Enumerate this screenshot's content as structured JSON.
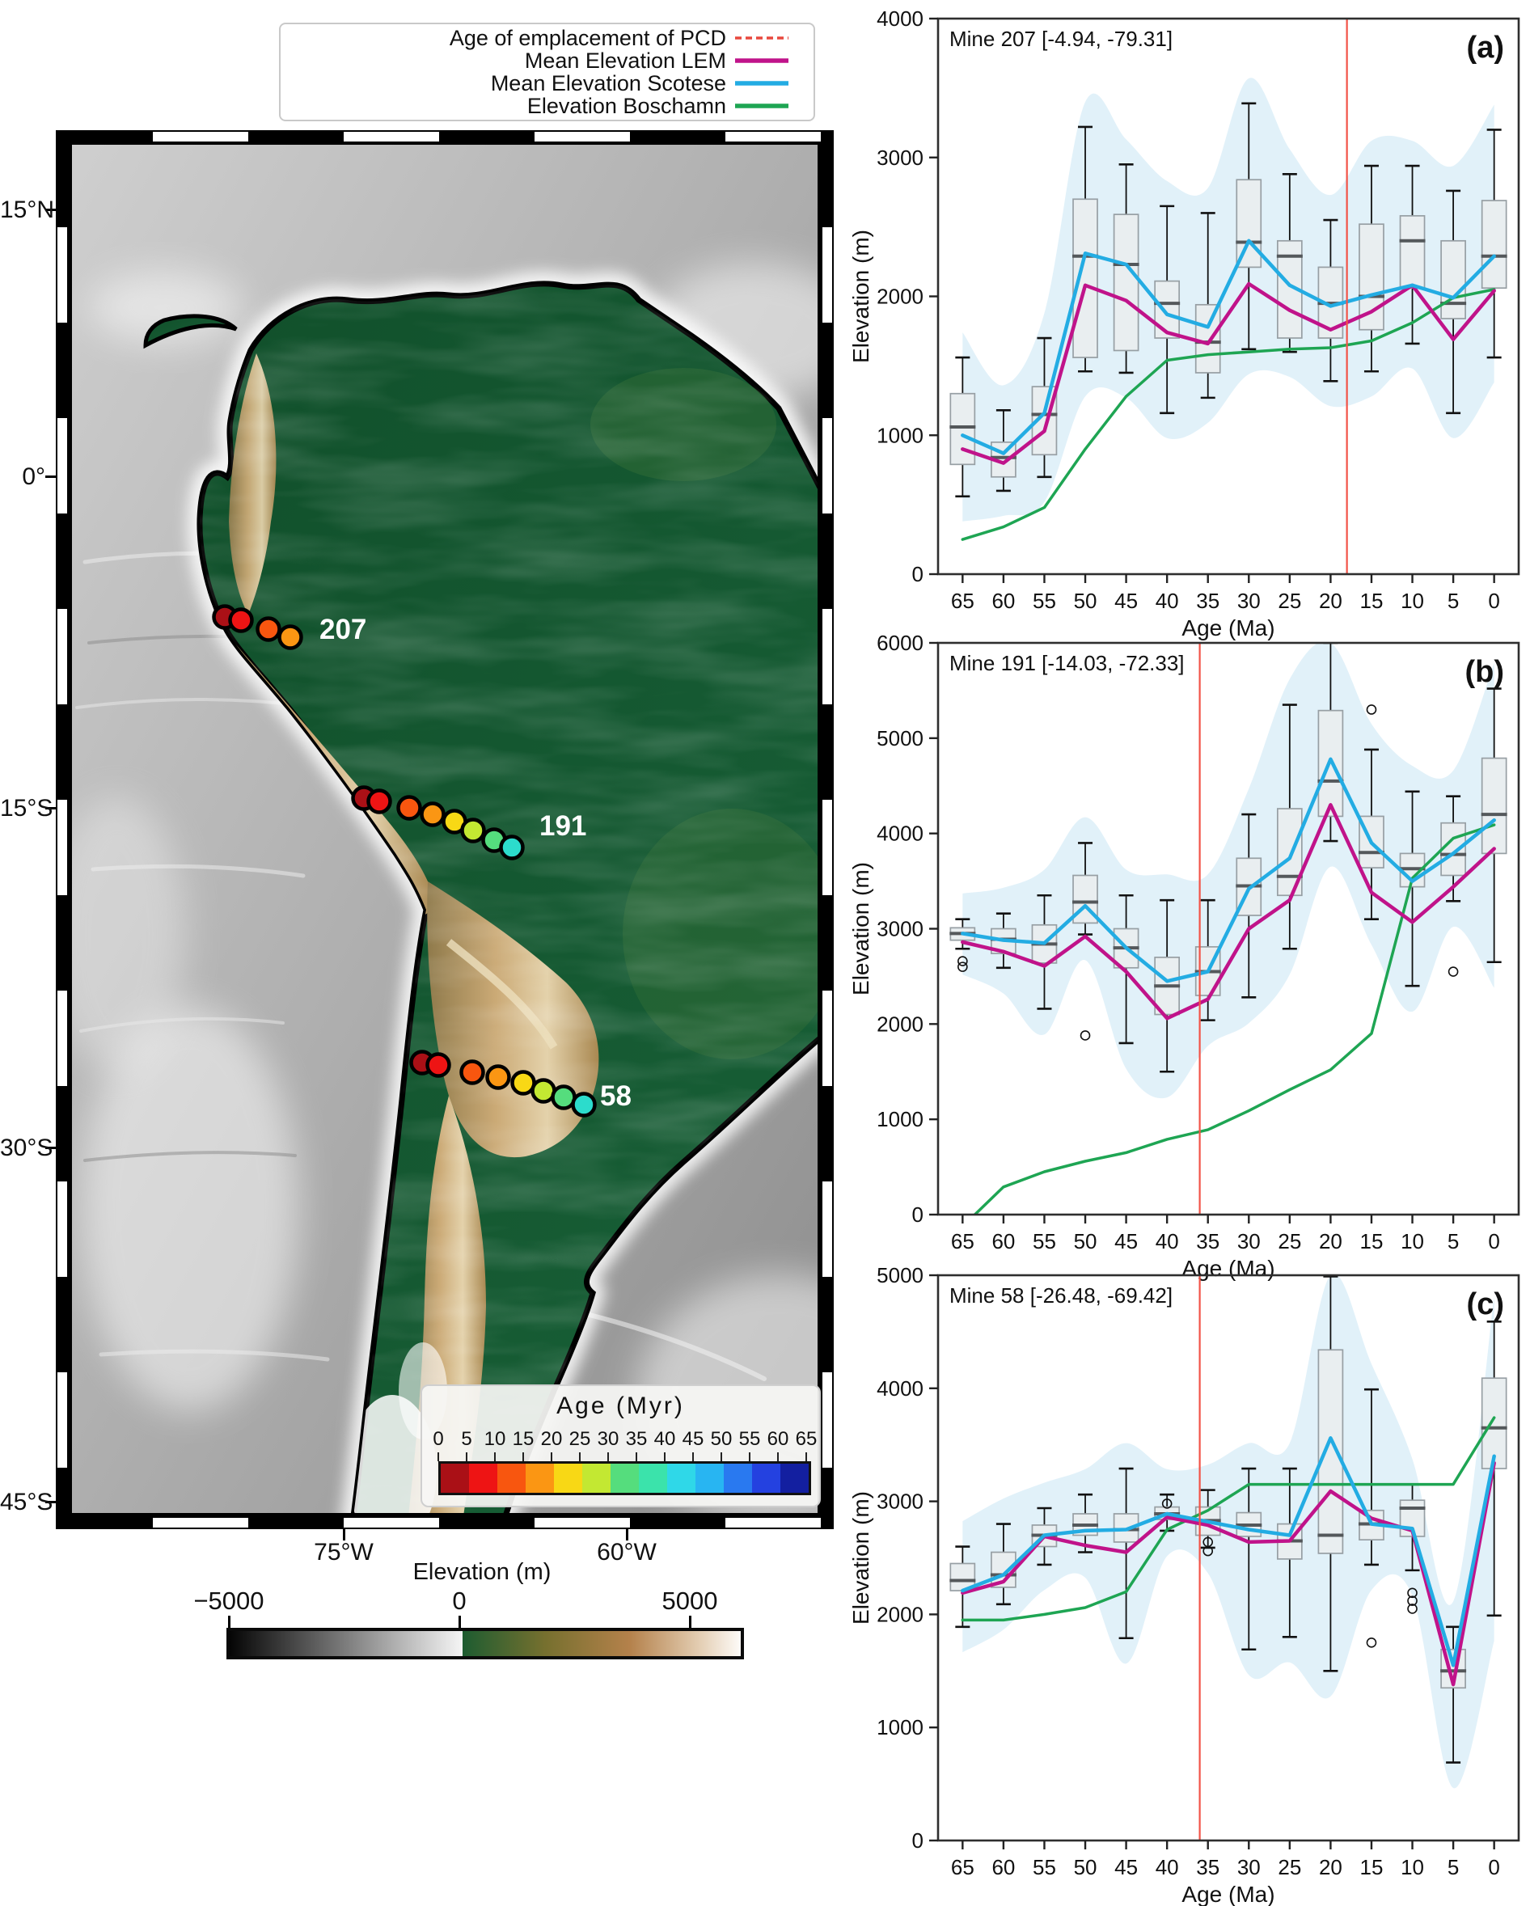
{
  "figure": {
    "panel_letters": [
      "(a)",
      "(b)",
      "(c)"
    ]
  },
  "colors": {
    "band": "#daedf8",
    "box_fill": "#e9eef0",
    "box_edge": "#979fa4",
    "median": "#54585b",
    "whisker": "#111111",
    "pcd_line": "#f25347",
    "lem": "#c0138a",
    "scotese": "#23ace3",
    "boschamn": "#1ea553",
    "frame": "#2e2e2e"
  },
  "legend": {
    "items": [
      {
        "label": "Age of emplacement of PCD",
        "color": "#e8483e",
        "style": "dashed"
      },
      {
        "label": "Mean Elevation LEM",
        "color": "#c0138a",
        "style": "solid"
      },
      {
        "label": "Mean Elevation Scotese",
        "color": "#23ace3",
        "style": "solid"
      },
      {
        "label": "Elevation Boschamn",
        "color": "#1ea553",
        "style": "solid"
      }
    ]
  },
  "map": {
    "lat_labels": [
      "15°N",
      "0°",
      "15°S",
      "30°S",
      "45°S"
    ],
    "lon_labels": [
      "75°W",
      "60°W"
    ],
    "mines": [
      {
        "id": "207",
        "dot_colors": [
          "#aa1016",
          "#ee1414",
          "#f8560f",
          "#fb9613"
        ]
      },
      {
        "id": "191",
        "dot_colors": [
          "#aa1016",
          "#ee1414",
          "#f8560f",
          "#fb9613",
          "#f8d815",
          "#c3e832",
          "#55dd7d",
          "#2cdccc"
        ]
      },
      {
        "id": "58",
        "dot_colors": [
          "#aa1016",
          "#ee1414",
          "#f8560f",
          "#fb9613",
          "#f8d815",
          "#c3e832",
          "#55dd7d",
          "#2cdccc"
        ]
      }
    ],
    "age_colorbar": {
      "title": "Age (Myr)",
      "ticks": [
        0,
        5,
        10,
        15,
        20,
        25,
        30,
        35,
        40,
        45,
        50,
        55,
        60,
        65
      ],
      "colors": [
        "#aa1016",
        "#ee1414",
        "#f8560f",
        "#fb9613",
        "#f8d815",
        "#c3e832",
        "#55dd7d",
        "#3be3ab",
        "#2fd8e8",
        "#28b5f2",
        "#2979f0",
        "#2441e0",
        "#131fa0"
      ]
    },
    "elevation_colorbar": {
      "label": "Elevation (m)",
      "ticks": [
        "−5000",
        "0",
        "5000"
      ],
      "sea_colors": [
        "#050505",
        "#f5f5f5"
      ],
      "land_colors": [
        "#1d5c30",
        "#77702f",
        "#b4814b",
        "#e3cdb2",
        "#fdfbf8"
      ]
    }
  },
  "chart_data": [
    {
      "type": "boxplot+lines",
      "panel_label": "(a)",
      "title": "Mine 207 [-4.94, -79.31]",
      "xlabel": "Age (Ma)",
      "ylabel": "Elevation (m)",
      "x": [
        65,
        60,
        55,
        50,
        45,
        40,
        35,
        30,
        25,
        20,
        15,
        10,
        5,
        0
      ],
      "ylim": [
        0,
        4000
      ],
      "yticks": [
        0,
        1000,
        2000,
        3000,
        4000
      ],
      "pcd_age": 18,
      "box": {
        "median": [
          1060,
          840,
          1150,
          2290,
          2230,
          1950,
          1670,
          2390,
          2290,
          1950,
          2000,
          2400,
          1950,
          2290
        ],
        "q1": [
          790,
          700,
          860,
          1560,
          1610,
          1700,
          1450,
          2210,
          1700,
          1700,
          1760,
          2060,
          1840,
          2060
        ],
        "q3": [
          1300,
          950,
          1350,
          2700,
          2590,
          2110,
          1940,
          2840,
          2400,
          2210,
          2520,
          2580,
          2400,
          2690
        ],
        "lo": [
          560,
          600,
          700,
          1460,
          1450,
          1160,
          1270,
          1620,
          1600,
          1390,
          1460,
          1660,
          1160,
          1560
        ],
        "hi": [
          1560,
          1180,
          1700,
          3220,
          2950,
          2650,
          2600,
          3390,
          2880,
          2550,
          2940,
          2940,
          2760,
          3200
        ]
      },
      "outliers": [],
      "series": [
        {
          "name": "Elevation Boschamn",
          "color": "#1ea553",
          "width": 3.5,
          "values": [
            250,
            340,
            480,
            900,
            1280,
            1540,
            1580,
            1600,
            1620,
            1630,
            1680,
            1810,
            1990,
            2050
          ]
        },
        {
          "name": "Mean Elevation LEM",
          "color": "#c0138a",
          "width": 4.5,
          "values": [
            900,
            800,
            1030,
            2080,
            1970,
            1740,
            1660,
            2090,
            1900,
            1760,
            1890,
            2080,
            1690,
            2040
          ]
        },
        {
          "name": "Mean Elevation Scotese",
          "color": "#23ace3",
          "width": 4.5,
          "values": [
            1000,
            870,
            1160,
            2310,
            2230,
            1870,
            1780,
            2400,
            2080,
            1930,
            2010,
            2080,
            1990,
            2290
          ]
        }
      ]
    },
    {
      "type": "boxplot+lines",
      "panel_label": "(b)",
      "title": "Mine 191 [-14.03, -72.33]",
      "xlabel": "Age (Ma)",
      "ylabel": "Elevation (m)",
      "x": [
        65,
        60,
        55,
        50,
        45,
        40,
        35,
        30,
        25,
        20,
        15,
        10,
        5,
        0
      ],
      "ylim": [
        0,
        6000
      ],
      "yticks": [
        0,
        1000,
        2000,
        3000,
        4000,
        5000,
        6000
      ],
      "pcd_age": 36,
      "box": {
        "median": [
          2950,
          2890,
          2840,
          3280,
          2800,
          2400,
          2550,
          3450,
          3550,
          4550,
          3800,
          3630,
          3780,
          4200
        ],
        "q1": [
          2880,
          2740,
          2640,
          3060,
          2590,
          2100,
          2300,
          3140,
          3350,
          4180,
          3640,
          3440,
          3560,
          3790
        ],
        "q3": [
          3010,
          3000,
          3040,
          3560,
          3000,
          2700,
          2810,
          3740,
          4260,
          5290,
          4180,
          3790,
          4110,
          4790
        ],
        "lo": [
          2790,
          2590,
          2160,
          2940,
          1800,
          1500,
          2040,
          2280,
          2790,
          3920,
          3100,
          2400,
          3290,
          2650
        ],
        "hi": [
          3100,
          3160,
          3350,
          3900,
          3350,
          3300,
          3300,
          4200,
          5350,
          6000,
          4880,
          4440,
          4390,
          5520
        ]
      },
      "outliers": [
        [
          65,
          2600
        ],
        [
          65,
          2660
        ],
        [
          50,
          1880
        ],
        [
          15,
          5300
        ],
        [
          5,
          2550
        ]
      ],
      "series": [
        {
          "name": "Elevation Boschamn",
          "color": "#1ea553",
          "width": 3.5,
          "x": [
            63.5,
            60,
            55,
            50,
            45,
            40,
            35,
            30,
            25,
            20,
            15,
            10,
            5,
            0
          ],
          "values": [
            0,
            290,
            450,
            560,
            650,
            790,
            890,
            1090,
            1310,
            1520,
            1900,
            3530,
            3950,
            4090
          ]
        },
        {
          "name": "Mean Elevation LEM",
          "color": "#c0138a",
          "width": 4.5,
          "values": [
            2860,
            2760,
            2610,
            2920,
            2550,
            2060,
            2260,
            3000,
            3300,
            4300,
            3380,
            3070,
            3440,
            3840
          ]
        },
        {
          "name": "Mean Elevation Scotese",
          "color": "#23ace3",
          "width": 4.5,
          "values": [
            2950,
            2880,
            2850,
            3240,
            2800,
            2450,
            2550,
            3420,
            3740,
            4780,
            3900,
            3500,
            3790,
            4140
          ]
        }
      ]
    },
    {
      "type": "boxplot+lines",
      "panel_label": "(c)",
      "title": "Mine 58 [-26.48, -69.42]",
      "xlabel": "Age (Ma)",
      "ylabel": "Elevation (m)",
      "x": [
        65,
        60,
        55,
        50,
        45,
        40,
        35,
        30,
        25,
        20,
        15,
        10,
        5,
        0
      ],
      "ylim": [
        0,
        5000
      ],
      "yticks": [
        0,
        1000,
        2000,
        3000,
        4000,
        5000
      ],
      "pcd_age": 36,
      "box": {
        "median": [
          2300,
          2350,
          2700,
          2790,
          2750,
          2890,
          2830,
          2790,
          2650,
          2700,
          2800,
          2940,
          1500,
          3650
        ],
        "q1": [
          2210,
          2240,
          2600,
          2700,
          2640,
          2840,
          2700,
          2690,
          2490,
          2540,
          2660,
          2690,
          1350,
          3290
        ],
        "q3": [
          2450,
          2550,
          2790,
          2890,
          2890,
          2950,
          2950,
          2900,
          2800,
          4340,
          2920,
          3010,
          1690,
          4090
        ],
        "lo": [
          1890,
          2090,
          2440,
          2550,
          1790,
          2740,
          2590,
          1690,
          1800,
          1500,
          2440,
          2390,
          690,
          1990
        ],
        "hi": [
          2600,
          2800,
          2940,
          3060,
          3290,
          3060,
          3100,
          3290,
          3290,
          4990,
          3990,
          3150,
          1890,
          4590
        ]
      },
      "outliers": [
        [
          40,
          2980
        ],
        [
          35,
          2640
        ],
        [
          35,
          2560
        ],
        [
          15,
          1750
        ],
        [
          10,
          2190
        ],
        [
          10,
          2120
        ],
        [
          10,
          2050
        ]
      ],
      "series": [
        {
          "name": "Elevation Boschamn",
          "color": "#1ea553",
          "width": 3.5,
          "values": [
            1950,
            1950,
            2000,
            2060,
            2200,
            2750,
            2920,
            3150,
            3150,
            3150,
            3150,
            3150,
            3150,
            3740
          ]
        },
        {
          "name": "Mean Elevation LEM",
          "color": "#c0138a",
          "width": 4.5,
          "values": [
            2190,
            2290,
            2690,
            2610,
            2550,
            2860,
            2790,
            2640,
            2650,
            3090,
            2850,
            2740,
            1380,
            3340
          ]
        },
        {
          "name": "Mean Elevation Scotese",
          "color": "#23ace3",
          "width": 4.5,
          "values": [
            2210,
            2350,
            2700,
            2740,
            2750,
            2890,
            2820,
            2750,
            2700,
            3560,
            2800,
            2760,
            1550,
            3400
          ]
        }
      ]
    }
  ]
}
